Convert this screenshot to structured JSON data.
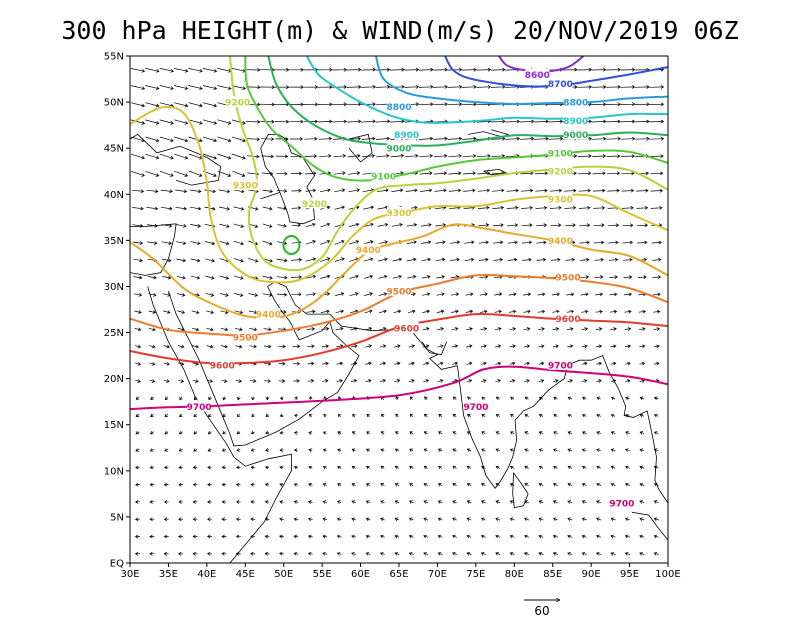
{
  "title": "300 hPa HEIGHT(m) & WIND(m/s) 20/NOV/2019 06Z",
  "map": {
    "lon_range": [
      30,
      100
    ],
    "lat_range": [
      0,
      55
    ],
    "x_ticks": [
      "30E",
      "35E",
      "40E",
      "45E",
      "50E",
      "55E",
      "60E",
      "65E",
      "70E",
      "75E",
      "80E",
      "85E",
      "90E",
      "95E",
      "100E"
    ],
    "y_ticks": [
      "EQ",
      "5N",
      "10N",
      "15N",
      "20N",
      "25N",
      "30N",
      "35N",
      "40N",
      "45N",
      "50N",
      "55N"
    ]
  },
  "contours": [
    {
      "value": "9700",
      "color": "#d0007a",
      "labels": [
        [
          39,
          17
        ],
        [
          75,
          17
        ],
        [
          86,
          21.5
        ],
        [
          94,
          6.5
        ]
      ]
    },
    {
      "value": "9600",
      "color": "#e23b2e",
      "labels": [
        [
          42,
          21.5
        ],
        [
          66,
          25.5
        ],
        [
          87,
          26.5
        ]
      ]
    },
    {
      "value": "9500",
      "color": "#ee7a2a",
      "labels": [
        [
          45,
          24.5
        ],
        [
          65,
          29.5
        ],
        [
          87,
          31
        ]
      ]
    },
    {
      "value": "9400",
      "color": "#e8a82e",
      "labels": [
        [
          48,
          27
        ],
        [
          61,
          34
        ],
        [
          86,
          35
        ]
      ]
    },
    {
      "value": "9300",
      "color": "#d9c233",
      "labels": [
        [
          45,
          41
        ],
        [
          65,
          38
        ],
        [
          86,
          39.5
        ]
      ]
    },
    {
      "value": "9200",
      "color": "#b8d23a",
      "labels": [
        [
          44,
          50
        ],
        [
          54,
          39
        ],
        [
          86,
          42.5
        ]
      ]
    },
    {
      "value": "9100",
      "color": "#55c83a",
      "labels": [
        [
          63,
          42
        ],
        [
          86,
          44.5
        ]
      ]
    },
    {
      "value": "9000",
      "color": "#29b05a",
      "labels": [
        [
          65,
          45
        ],
        [
          88,
          46.5
        ]
      ]
    },
    {
      "value": "8900",
      "color": "#2ac6c6",
      "labels": [
        [
          66,
          46.5
        ],
        [
          88,
          48
        ]
      ]
    },
    {
      "value": "8800",
      "color": "#2a9ae0",
      "labels": [
        [
          65,
          49.5
        ],
        [
          88,
          50
        ]
      ]
    },
    {
      "value": "8700",
      "color": "#3050d8",
      "labels": [
        [
          86,
          52
        ]
      ]
    },
    {
      "value": "8600",
      "color": "#8a2ad8",
      "labels": [
        [
          83,
          53
        ]
      ]
    }
  ],
  "low_center": {
    "lon": 51,
    "lat": 34.5,
    "color": "#22bb22"
  },
  "reference_vector": {
    "label": "60",
    "units": "m/s"
  }
}
